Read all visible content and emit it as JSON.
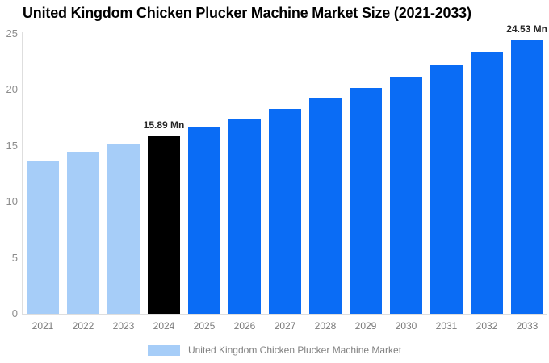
{
  "chart_data": {
    "type": "bar",
    "title": "United Kingdom Chicken Plucker Machine Market Size (2021-2033)",
    "unit": "Mn",
    "categories": [
      "2021",
      "2022",
      "2023",
      "2024",
      "2025",
      "2026",
      "2027",
      "2028",
      "2029",
      "2030",
      "2031",
      "2032",
      "2033"
    ],
    "values": [
      13.7,
      14.4,
      15.1,
      15.89,
      16.63,
      17.45,
      18.32,
      19.23,
      20.18,
      21.18,
      22.23,
      23.33,
      24.53
    ],
    "bar_styles": [
      "light",
      "light",
      "light",
      "dark",
      "primary",
      "primary",
      "primary",
      "primary",
      "primary",
      "primary",
      "primary",
      "primary",
      "primary"
    ],
    "palette": {
      "light": "#A6CDF8",
      "dark": "#000000",
      "primary": "#0A6CF5",
      "axis_line": "#dedede",
      "tick_text": "#8c8c8c",
      "annotation_text": "#262626"
    },
    "annotations": [
      {
        "index": 3,
        "text": "15.89 Mn",
        "align": "center"
      },
      {
        "index": 12,
        "text": "24.53 Mn",
        "align": "right"
      }
    ],
    "yticks": [
      0,
      5,
      10,
      15,
      20,
      25
    ],
    "ylim": [
      0,
      25
    ],
    "xlabel": "",
    "ylabel": "",
    "grid": false,
    "legend": {
      "position": "bottom",
      "entries": [
        {
          "label": "United Kingdom Chicken Plucker Machine Market",
          "color": "#A6CDF8"
        }
      ]
    }
  }
}
